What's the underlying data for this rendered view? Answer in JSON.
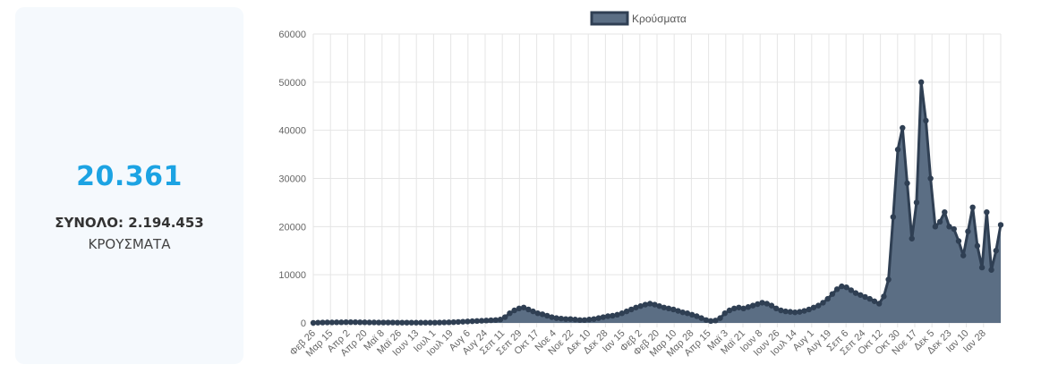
{
  "summary": {
    "daily_value": "20.361",
    "total_text": "ΣΥΝΟΛΟ: 2.194.453",
    "label": "ΚΡΟΥΣΜΑΤΑ"
  },
  "colors": {
    "accent": "#1ca3e3",
    "series_fill": "#5b6e84",
    "series_line": "#2f3f53",
    "card_bg": "#f5f9fd",
    "grid": "#e5e5e5"
  },
  "chart_data": {
    "type": "area",
    "legend": {
      "position": "top-center",
      "label": "Κρούσματα"
    },
    "grid": true,
    "ylim": [
      0,
      60000
    ],
    "yticks": [
      0,
      10000,
      20000,
      30000,
      40000,
      50000,
      60000
    ],
    "x_tick_labels": [
      "Φεβ 26",
      "Μαρ 15",
      "Απρ 2",
      "Απρ 20",
      "Μαϊ 8",
      "Μαϊ 26",
      "Ιουν 13",
      "Ιουλ 1",
      "Ιουλ 19",
      "Αυγ 6",
      "Αυγ 24",
      "Σεπ 11",
      "Σεπ 29",
      "Οκτ 17",
      "Νοε 4",
      "Νοε 22",
      "Δεκ 10",
      "Δεκ 28",
      "Ιαν 15",
      "Φεβ 2",
      "Φεβ 20",
      "Μαρ 10",
      "Μαρ 28",
      "Απρ 15",
      "Μαϊ 3",
      "Μαϊ 21",
      "Ιουν 8",
      "Ιουν 26",
      "Ιουλ 14",
      "Αυγ 1",
      "Αυγ 19",
      "Σεπ 6",
      "Σεπ 24",
      "Οκτ 12",
      "Οκτ 30",
      "Νοε 17",
      "Δεκ 5",
      "Δεκ 23",
      "Ιαν 10",
      "Ιαν 28"
    ],
    "series": [
      {
        "name": "Κρούσματα",
        "values": [
          0,
          50,
          80,
          100,
          100,
          120,
          120,
          150,
          150,
          150,
          130,
          120,
          100,
          100,
          80,
          80,
          80,
          80,
          60,
          60,
          60,
          60,
          50,
          50,
          50,
          50,
          60,
          80,
          100,
          120,
          150,
          200,
          250,
          300,
          350,
          400,
          450,
          500,
          550,
          600,
          700,
          1200,
          2000,
          2600,
          3000,
          3200,
          2800,
          2400,
          2000,
          1800,
          1500,
          1200,
          1000,
          900,
          800,
          800,
          700,
          600,
          600,
          700,
          800,
          1000,
          1200,
          1400,
          1500,
          1700,
          2000,
          2400,
          2800,
          3200,
          3500,
          3800,
          4000,
          3800,
          3500,
          3200,
          3000,
          2800,
          2500,
          2200,
          2000,
          1700,
          1400,
          1000,
          600,
          400,
          500,
          1000,
          2000,
          2600,
          3000,
          3200,
          3000,
          3300,
          3600,
          3900,
          4200,
          4000,
          3600,
          3000,
          2600,
          2400,
          2300,
          2200,
          2300,
          2500,
          2800,
          3200,
          3600,
          4200,
          5000,
          6000,
          7000,
          7600,
          7400,
          6800,
          6200,
          5800,
          5400,
          5000,
          4500,
          4000,
          5500,
          9000,
          22000,
          36000,
          40500,
          29000,
          17500,
          25000,
          50000,
          42000,
          30000,
          20000,
          21000,
          23000,
          20000,
          19500,
          17000,
          14000,
          19000,
          24000,
          16000,
          11500,
          23000,
          11000,
          15000,
          20361
        ]
      }
    ]
  }
}
